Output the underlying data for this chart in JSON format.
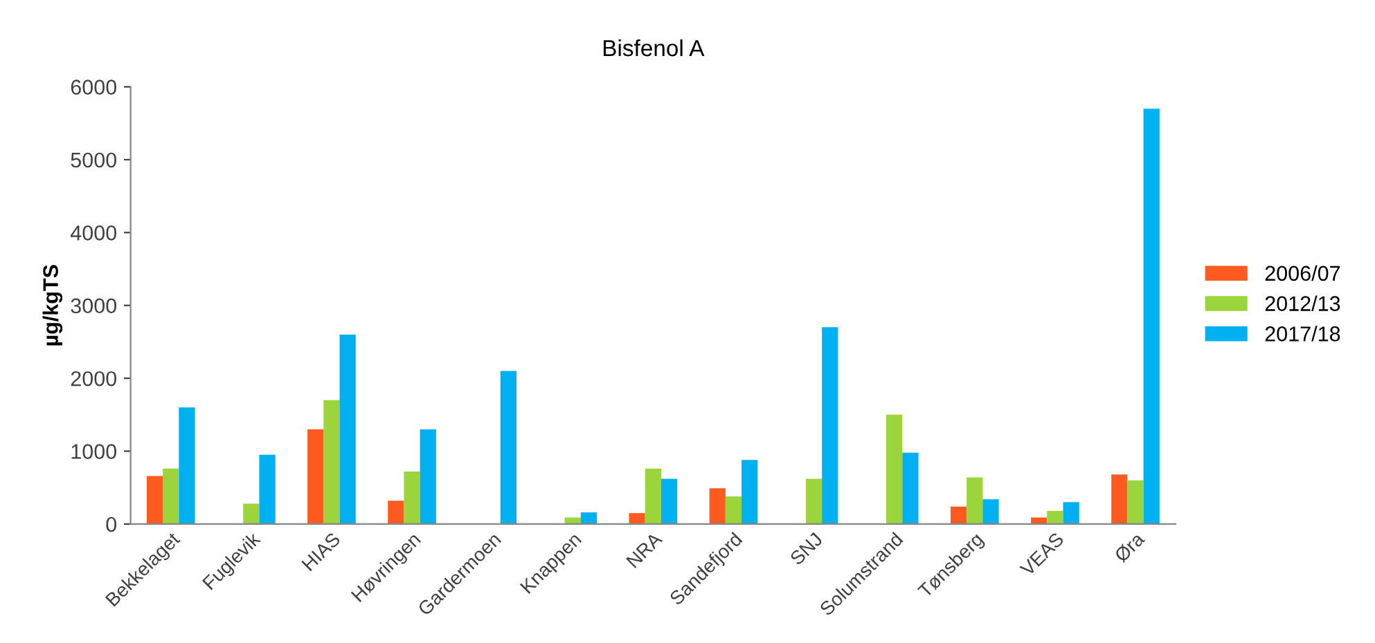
{
  "chart_data": {
    "type": "bar",
    "title": "Bisfenol A",
    "ylabel": "µg/kgTS",
    "categories": [
      "Bekkelaget",
      "Fuglevik",
      "HIAS",
      "Høvringen",
      "Gardermoen",
      "Knappen",
      "NRA",
      "Sandefjord",
      "SNJ",
      "Solumstrand",
      "Tønsberg",
      "VEAS",
      "Øra"
    ],
    "series": [
      {
        "name": "2006/07",
        "color": "#ff5a1f",
        "values": [
          660,
          null,
          1300,
          320,
          null,
          null,
          150,
          490,
          null,
          null,
          240,
          90,
          680
        ]
      },
      {
        "name": "2012/13",
        "color": "#9bd43b",
        "values": [
          760,
          280,
          1700,
          720,
          null,
          90,
          760,
          380,
          620,
          1500,
          640,
          180,
          600
        ]
      },
      {
        "name": "2017/18",
        "color": "#00b0f0",
        "values": [
          1600,
          950,
          2600,
          1300,
          2100,
          160,
          620,
          880,
          2700,
          980,
          340,
          300,
          5700
        ]
      }
    ],
    "ylim": [
      0,
      6000
    ],
    "yticks": [
      0,
      1000,
      2000,
      3000,
      4000,
      5000,
      6000
    ],
    "grid": false,
    "legend": "right"
  }
}
